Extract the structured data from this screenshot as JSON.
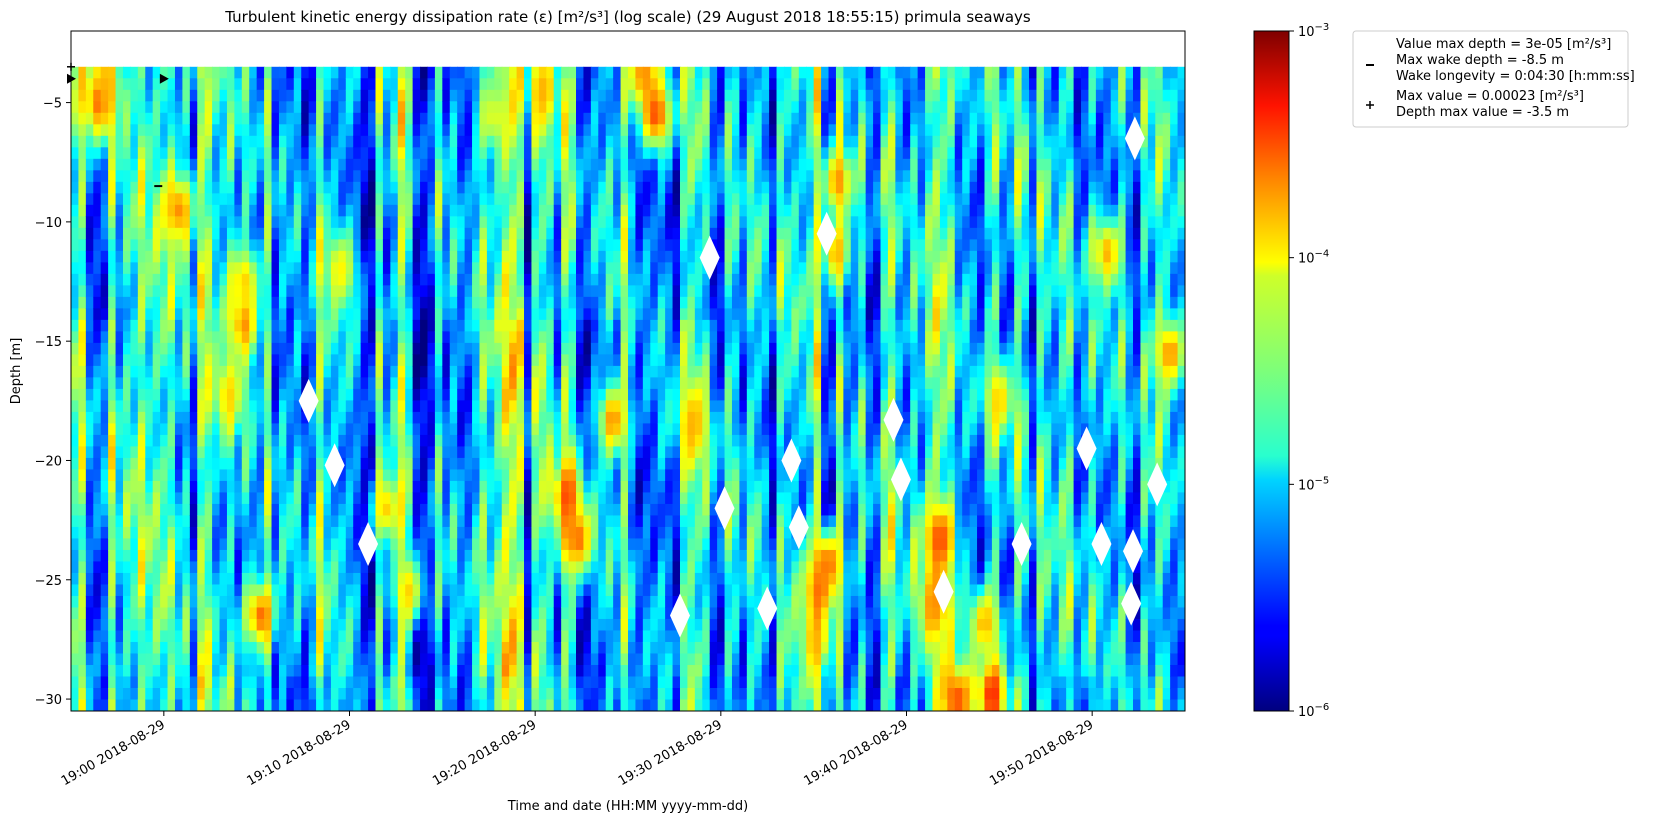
{
  "chart_data": {
    "type": "heatmap",
    "title": "Turbulent kinetic energy dissipation rate (ε) [m²/s³] (log scale) (29 August 2018 18:55:15) primula seaways",
    "xlabel": "Time and date (HH:MM yyyy-mm-dd)",
    "ylabel": "Depth [m]",
    "x_range_minutes_after_19_00": [
      -5,
      55
    ],
    "ylim": [
      -30.5,
      -2.0
    ],
    "data_extent_y": [
      -30.5,
      -3.5
    ],
    "x_ticks": [
      {
        "minute": 0,
        "label": "19:00 2018-08-29"
      },
      {
        "minute": 10,
        "label": "19:10 2018-08-29"
      },
      {
        "minute": 20,
        "label": "19:20 2018-08-29"
      },
      {
        "minute": 30,
        "label": "19:30 2018-08-29"
      },
      {
        "minute": 40,
        "label": "19:40 2018-08-29"
      },
      {
        "minute": 50,
        "label": "19:50 2018-08-29"
      }
    ],
    "y_ticks": [
      {
        "value": -5,
        "label": "−5"
      },
      {
        "value": -10,
        "label": "−10"
      },
      {
        "value": -15,
        "label": "−15"
      },
      {
        "value": -20,
        "label": "−20"
      },
      {
        "value": -25,
        "label": "−25"
      },
      {
        "value": -30,
        "label": "−30"
      }
    ],
    "colorbar": {
      "scale": "log",
      "colormap": "jet",
      "range": [
        1e-06,
        0.001
      ],
      "ticks": [
        {
          "exp": -3,
          "base": "10",
          "sup": "−3"
        },
        {
          "exp": -4,
          "base": "10",
          "sup": "−4"
        },
        {
          "exp": -5,
          "base": "10",
          "sup": "−5"
        },
        {
          "exp": -6,
          "base": "10",
          "sup": "−6"
        }
      ]
    },
    "legend": {
      "placement": "upper-right-outside",
      "entries": [
        {
          "marker": "_",
          "lines": [
            "Value max depth = 3e-05 [m²/s³]",
            "Max wake depth = -8.5 m",
            "Wake longevity = 0:04:30 [h:mm:ss]"
          ]
        },
        {
          "marker": "+",
          "lines": [
            "Max value = 0.00023 [m²/s³]",
            "Depth max value = -3.5 m"
          ]
        }
      ]
    },
    "markers": [
      {
        "symbol": "+",
        "minute": -5,
        "depth": -3.5
      },
      {
        "symbol": "triangle-right",
        "minute": -5,
        "depth": -4.0
      },
      {
        "symbol": "triangle-right",
        "minute": 0,
        "depth": -4.0
      },
      {
        "symbol": "_",
        "minute": -0.3,
        "depth": -8.5
      }
    ],
    "hotspots": [
      {
        "minute": -3.5,
        "depth": -5.0,
        "log10": -3.7
      },
      {
        "minute": -3.2,
        "depth": -4.2,
        "log10": -3.9
      },
      {
        "minute": 0.8,
        "depth": -9.5,
        "log10": -3.8
      },
      {
        "minute": 4.3,
        "depth": -14.3,
        "log10": -3.8
      },
      {
        "minute": 4.3,
        "depth": -12.5,
        "log10": -4.0
      },
      {
        "minute": 3.5,
        "depth": -17.3,
        "log10": -4.0
      },
      {
        "minute": 5.2,
        "depth": -26.5,
        "log10": -3.7
      },
      {
        "minute": 12.0,
        "depth": -22.0,
        "log10": -4.0
      },
      {
        "minute": 17.8,
        "depth": -5.6,
        "log10": -4.2
      },
      {
        "minute": 20.4,
        "depth": -4.5,
        "log10": -3.9
      },
      {
        "minute": 21.7,
        "depth": -21.5,
        "log10": -3.6
      },
      {
        "minute": 22.3,
        "depth": -23.3,
        "log10": -3.7
      },
      {
        "minute": 24.2,
        "depth": -18.3,
        "log10": -3.8
      },
      {
        "minute": 25.8,
        "depth": -3.8,
        "log10": -3.8
      },
      {
        "minute": 26.5,
        "depth": -5.5,
        "log10": -3.6
      },
      {
        "minute": 28.5,
        "depth": -18.5,
        "log10": -3.9
      },
      {
        "minute": 35.3,
        "depth": -25.5,
        "log10": -3.7
      },
      {
        "minute": 36.3,
        "depth": -8.3,
        "log10": -3.8
      },
      {
        "minute": 35.8,
        "depth": -24.3,
        "log10": -3.7
      },
      {
        "minute": 36.2,
        "depth": -11.3,
        "log10": -3.9
      },
      {
        "minute": 35.2,
        "depth": -27.5,
        "log10": -3.9
      },
      {
        "minute": 41.8,
        "depth": -23.3,
        "log10": -3.6
      },
      {
        "minute": 41.5,
        "depth": -26.0,
        "log10": -3.8
      },
      {
        "minute": 42.7,
        "depth": -30.0,
        "log10": -3.6
      },
      {
        "minute": 44.6,
        "depth": -29.8,
        "log10": -3.5
      },
      {
        "minute": 44.2,
        "depth": -26.8,
        "log10": -3.9
      },
      {
        "minute": 45.0,
        "depth": -17.5,
        "log10": -4.0
      },
      {
        "minute": 50.8,
        "depth": -11.3,
        "log10": -3.9
      },
      {
        "minute": 54.2,
        "depth": -15.5,
        "log10": -3.8
      },
      {
        "minute": 13.2,
        "depth": -25.5,
        "log10": -4.0
      },
      {
        "minute": 9.5,
        "depth": -12.0,
        "log10": -4.1
      }
    ],
    "blank_regions": [
      {
        "minute": 29.4,
        "depth": -11.5
      },
      {
        "minute": 35.7,
        "depth": -10.5
      },
      {
        "minute": 39.3,
        "depth": -18.3
      },
      {
        "minute": 33.8,
        "depth": -20.0
      },
      {
        "minute": 52.3,
        "depth": -6.5
      },
      {
        "minute": 52.2,
        "depth": -23.8
      },
      {
        "minute": 53.5,
        "depth": -21.0
      },
      {
        "minute": 27.8,
        "depth": -26.5
      },
      {
        "minute": 42.0,
        "depth": -25.5
      },
      {
        "minute": 49.7,
        "depth": -19.5
      },
      {
        "minute": 50.5,
        "depth": -23.5
      },
      {
        "minute": 9.2,
        "depth": -20.2
      },
      {
        "minute": 11.0,
        "depth": -23.5
      },
      {
        "minute": 30.2,
        "depth": -22.0
      },
      {
        "minute": 39.7,
        "depth": -20.8
      },
      {
        "minute": 46.2,
        "depth": -23.5
      },
      {
        "minute": 52.1,
        "depth": -26.0
      },
      {
        "minute": 7.8,
        "depth": -17.5
      },
      {
        "minute": 32.5,
        "depth": -26.2
      },
      {
        "minute": 34.2,
        "depth": -22.8
      }
    ]
  }
}
